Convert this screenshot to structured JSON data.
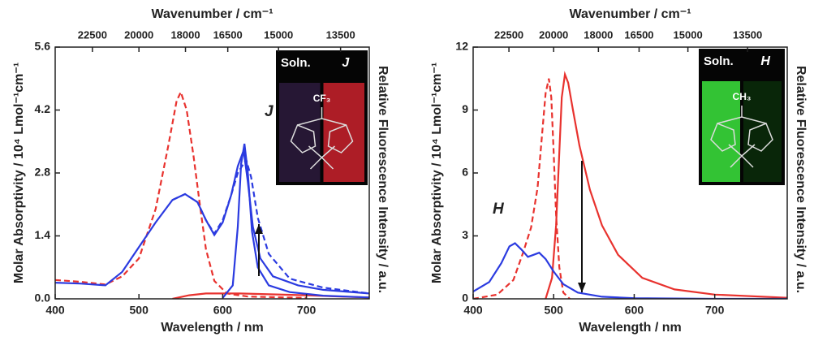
{
  "chart_data": [
    {
      "type": "line",
      "x_label": "Wavelength / nm",
      "y_label": "Molar Absorptivity / 10⁴ Lmol⁻¹cm⁻¹",
      "y2_label": "Relative Fluorescence Intensity / a.u.",
      "top_label": "Wavenumber / cm⁻¹",
      "xlim": [
        400,
        775
      ],
      "xticks": [
        400,
        500,
        600,
        700
      ],
      "ylim": [
        0,
        5.6
      ],
      "yticks": [
        {
          "value": 0,
          "label": "0.0"
        },
        1.4,
        2.8,
        4.2,
        5.6
      ],
      "top_ticks": [
        22500,
        20000,
        18000,
        16500,
        15000,
        13500
      ],
      "annotation": "J",
      "inset": {
        "left": "Soln.",
        "right": "J",
        "substituent": "CF₃",
        "colors": [
          "#2a1a3a",
          "#c0202a"
        ]
      },
      "series": [
        {
          "color": "#e8322e",
          "dash": true,
          "x": [
            400,
            430,
            460,
            480,
            500,
            520,
            535,
            545,
            550,
            557,
            565,
            572,
            580,
            590,
            605,
            630,
            700
          ],
          "values": [
            0.42,
            0.38,
            0.32,
            0.5,
            0.9,
            2.0,
            3.4,
            4.4,
            4.6,
            4.2,
            3.2,
            2.2,
            1.1,
            0.4,
            0.12,
            0.05,
            0.02
          ]
        },
        {
          "color": "#2b3be0",
          "dash": false,
          "x": [
            400,
            430,
            460,
            480,
            500,
            520,
            540,
            555,
            570,
            580,
            590,
            600,
            610,
            618,
            625,
            630,
            636,
            645,
            660,
            690,
            720,
            775
          ],
          "values": [
            0.36,
            0.34,
            0.3,
            0.6,
            1.15,
            1.7,
            2.2,
            2.33,
            2.15,
            1.75,
            1.42,
            1.7,
            2.3,
            2.95,
            3.3,
            2.6,
            1.6,
            0.9,
            0.5,
            0.3,
            0.2,
            0.12
          ]
        },
        {
          "color": "#2b3be0",
          "dash": true,
          "x": [
            540,
            555,
            570,
            580,
            590,
            600,
            610,
            618,
            628,
            634,
            642,
            655,
            680,
            720,
            775
          ],
          "values": [
            2.2,
            2.33,
            2.15,
            1.75,
            1.45,
            1.75,
            2.3,
            2.8,
            3.1,
            2.7,
            1.8,
            1.0,
            0.45,
            0.25,
            0.12
          ]
        },
        {
          "color": "#e8322e",
          "dash": false,
          "x": [
            540,
            560,
            580,
            620,
            660,
            700,
            740,
            775
          ],
          "values": [
            0.0,
            0.08,
            0.12,
            0.12,
            0.1,
            0.08,
            0.05,
            0.03
          ]
        },
        {
          "color": "#2b3be0",
          "dash": false,
          "x": [
            600,
            612,
            618,
            622,
            626,
            630,
            635,
            642,
            655,
            680,
            720,
            775
          ],
          "values": [
            0.02,
            0.3,
            1.6,
            3.0,
            3.45,
            2.8,
            1.5,
            0.7,
            0.3,
            0.15,
            0.07,
            0.03
          ]
        }
      ]
    },
    {
      "type": "line",
      "x_label": "Wavelength / nm",
      "y_label": "Molar Absorptivity / 10⁴ Lmol⁻¹cm⁻¹",
      "y2_label": "Relative Fluorescence Intensity / a.u.",
      "top_label": "Wavenumber / cm⁻¹",
      "xlim": [
        400,
        790
      ],
      "xticks": [
        400,
        500,
        600,
        700
      ],
      "ylim": [
        0,
        12
      ],
      "yticks": [
        0,
        3,
        6,
        9,
        12
      ],
      "top_ticks": [
        22500,
        20000,
        18000,
        16500,
        15000,
        13500
      ],
      "annotation": "H",
      "inset": {
        "left": "Soln.",
        "right": "H",
        "substituent": "CH₃",
        "colors": [
          "#39d83a",
          "#0a2a0a"
        ]
      },
      "series": [
        {
          "color": "#e8322e",
          "dash": true,
          "x": [
            400,
            430,
            450,
            462,
            472,
            480,
            486,
            490,
            494,
            497,
            500,
            503,
            507,
            512,
            520
          ],
          "values": [
            0.0,
            0.2,
            0.9,
            2.2,
            3.4,
            5.3,
            8.0,
            9.8,
            10.5,
            9.6,
            7.0,
            4.0,
            1.5,
            0.3,
            0.0
          ]
        },
        {
          "color": "#e8322e",
          "dash": false,
          "x": [
            490,
            498,
            503,
            507,
            510,
            514,
            518,
            524,
            532,
            545,
            560,
            580,
            610,
            650,
            700,
            790
          ],
          "values": [
            0.0,
            1.0,
            3.5,
            7.0,
            9.6,
            10.7,
            10.3,
            9.0,
            7.3,
            5.2,
            3.5,
            2.1,
            1.0,
            0.45,
            0.2,
            0.05
          ]
        },
        {
          "color": "#2b3be0",
          "dash": false,
          "x": [
            400,
            420,
            435,
            445,
            452,
            460,
            468,
            475,
            482,
            490,
            500,
            512,
            530,
            560,
            600,
            700,
            790
          ],
          "values": [
            0.35,
            0.8,
            1.7,
            2.5,
            2.65,
            2.35,
            2.0,
            2.1,
            2.2,
            1.9,
            1.3,
            0.7,
            0.3,
            0.1,
            0.03,
            0.0,
            0.0
          ]
        }
      ]
    }
  ]
}
